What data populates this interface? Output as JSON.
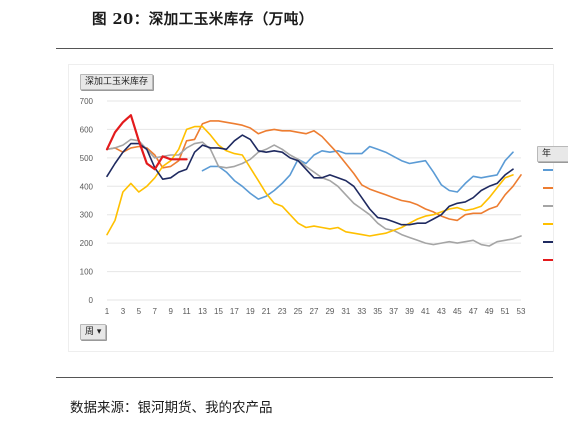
{
  "figure": {
    "title": "图 20：深加工玉米库存（万吨）",
    "source": "数据来源：银河期货、我的农产品"
  },
  "controls": {
    "series_filter_label": "深加工玉米库存",
    "period_filter_label": "周 ▾",
    "legend_header": "年"
  },
  "chart_data": {
    "type": "line",
    "title": "",
    "xlabel": "",
    "ylabel": "",
    "ylim": [
      0,
      700
    ],
    "yticks": [
      0,
      100,
      200,
      300,
      400,
      500,
      600,
      700
    ],
    "xlim": [
      1,
      53
    ],
    "xticks": [
      1,
      3,
      5,
      7,
      9,
      11,
      13,
      15,
      17,
      19,
      21,
      23,
      25,
      27,
      29,
      31,
      33,
      35,
      37,
      39,
      41,
      43,
      45,
      47,
      49,
      51,
      53
    ],
    "grid": true,
    "legend_position": "right",
    "series": [
      {
        "color": "#5b9bd5",
        "x": [
          13,
          14,
          15,
          16,
          17,
          18,
          19,
          20,
          21,
          22,
          23,
          24,
          25,
          26,
          27,
          28,
          29,
          30,
          31,
          32,
          33,
          34,
          35,
          36,
          37,
          38,
          39,
          40,
          41,
          42,
          43,
          44,
          45,
          46,
          47,
          48,
          49,
          50,
          51,
          52
        ],
        "y": [
          455,
          470,
          470,
          450,
          420,
          400,
          375,
          355,
          365,
          385,
          410,
          440,
          495,
          480,
          510,
          525,
          520,
          525,
          515,
          515,
          515,
          540,
          530,
          520,
          505,
          490,
          480,
          485,
          490,
          450,
          405,
          385,
          380,
          410,
          435,
          430,
          435,
          440,
          490,
          520
        ]
      },
      {
        "color": "#ed7d31",
        "x": [
          1,
          2,
          3,
          4,
          5,
          6,
          7,
          8,
          9,
          10,
          11,
          12,
          13,
          14,
          15,
          16,
          17,
          18,
          19,
          20,
          21,
          22,
          23,
          24,
          25,
          26,
          27,
          28,
          29,
          30,
          31,
          32,
          33,
          34,
          35,
          36,
          37,
          38,
          39,
          40,
          41,
          42,
          43,
          44,
          45,
          46,
          47,
          48,
          49,
          50,
          51,
          52,
          53
        ],
        "y": [
          530,
          535,
          520,
          535,
          540,
          535,
          510,
          465,
          470,
          490,
          560,
          565,
          620,
          630,
          630,
          625,
          620,
          615,
          605,
          585,
          595,
          600,
          595,
          595,
          590,
          585,
          595,
          575,
          545,
          515,
          480,
          445,
          405,
          390,
          380,
          370,
          360,
          350,
          345,
          335,
          320,
          310,
          295,
          285,
          280,
          300,
          305,
          305,
          320,
          330,
          370,
          400,
          440
        ]
      },
      {
        "color": "#a5a5a5",
        "x": [
          1,
          2,
          3,
          4,
          5,
          6,
          7,
          8,
          9,
          10,
          11,
          12,
          13,
          14,
          15,
          16,
          17,
          18,
          19,
          20,
          21,
          22,
          23,
          24,
          25,
          26,
          27,
          28,
          29,
          30,
          31,
          32,
          33,
          34,
          35,
          36,
          37,
          38,
          39,
          40,
          41,
          42,
          43,
          44,
          45,
          46,
          47,
          48,
          49,
          50,
          51,
          52,
          53
        ],
        "y": [
          530,
          535,
          545,
          565,
          560,
          530,
          500,
          505,
          510,
          510,
          535,
          550,
          555,
          530,
          470,
          465,
          470,
          480,
          495,
          520,
          530,
          545,
          530,
          510,
          495,
          470,
          450,
          430,
          420,
          400,
          370,
          340,
          320,
          300,
          270,
          250,
          245,
          230,
          220,
          210,
          200,
          195,
          200,
          205,
          200,
          205,
          210,
          195,
          190,
          205,
          210,
          215,
          225
        ]
      },
      {
        "color": "#ffc000",
        "x": [
          1,
          2,
          3,
          4,
          5,
          6,
          7,
          8,
          9,
          10,
          11,
          12,
          13,
          14,
          15,
          16,
          17,
          18,
          19,
          20,
          21,
          22,
          23,
          24,
          25,
          26,
          27,
          28,
          29,
          30,
          31,
          32,
          33,
          34,
          35,
          36,
          37,
          38,
          39,
          40,
          41,
          42,
          43,
          44,
          45,
          46,
          47,
          48,
          49,
          50,
          51,
          52
        ],
        "y": [
          230,
          280,
          380,
          410,
          380,
          400,
          430,
          470,
          490,
          530,
          600,
          610,
          610,
          580,
          545,
          525,
          515,
          510,
          465,
          420,
          375,
          340,
          330,
          300,
          270,
          255,
          260,
          255,
          250,
          255,
          240,
          235,
          230,
          225,
          230,
          235,
          245,
          255,
          270,
          285,
          295,
          300,
          310,
          320,
          325,
          315,
          320,
          330,
          360,
          395,
          430,
          440
        ]
      },
      {
        "color": "#1f2a60",
        "x": [
          1,
          2,
          3,
          4,
          5,
          6,
          7,
          8,
          9,
          10,
          11,
          12,
          13,
          14,
          15,
          16,
          17,
          18,
          19,
          20,
          21,
          22,
          23,
          24,
          25,
          26,
          27,
          28,
          29,
          30,
          31,
          32,
          33,
          34,
          35,
          36,
          37,
          38,
          39,
          40,
          41,
          42,
          43,
          44,
          45,
          46,
          47,
          48,
          49,
          50,
          51,
          52
        ],
        "y": [
          435,
          480,
          520,
          550,
          550,
          530,
          465,
          425,
          430,
          450,
          460,
          520,
          545,
          535,
          535,
          530,
          560,
          580,
          565,
          525,
          520,
          525,
          520,
          500,
          490,
          460,
          430,
          430,
          440,
          430,
          420,
          400,
          360,
          320,
          290,
          285,
          275,
          265,
          265,
          270,
          270,
          285,
          300,
          330,
          340,
          345,
          360,
          385,
          400,
          410,
          440,
          460
        ]
      },
      {
        "color": "#e31a1c",
        "x": [
          1,
          2,
          3,
          4,
          5,
          6,
          7,
          8,
          9,
          10,
          11
        ],
        "y": [
          530,
          590,
          625,
          650,
          560,
          480,
          460,
          505,
          495,
          495,
          495
        ]
      }
    ]
  }
}
